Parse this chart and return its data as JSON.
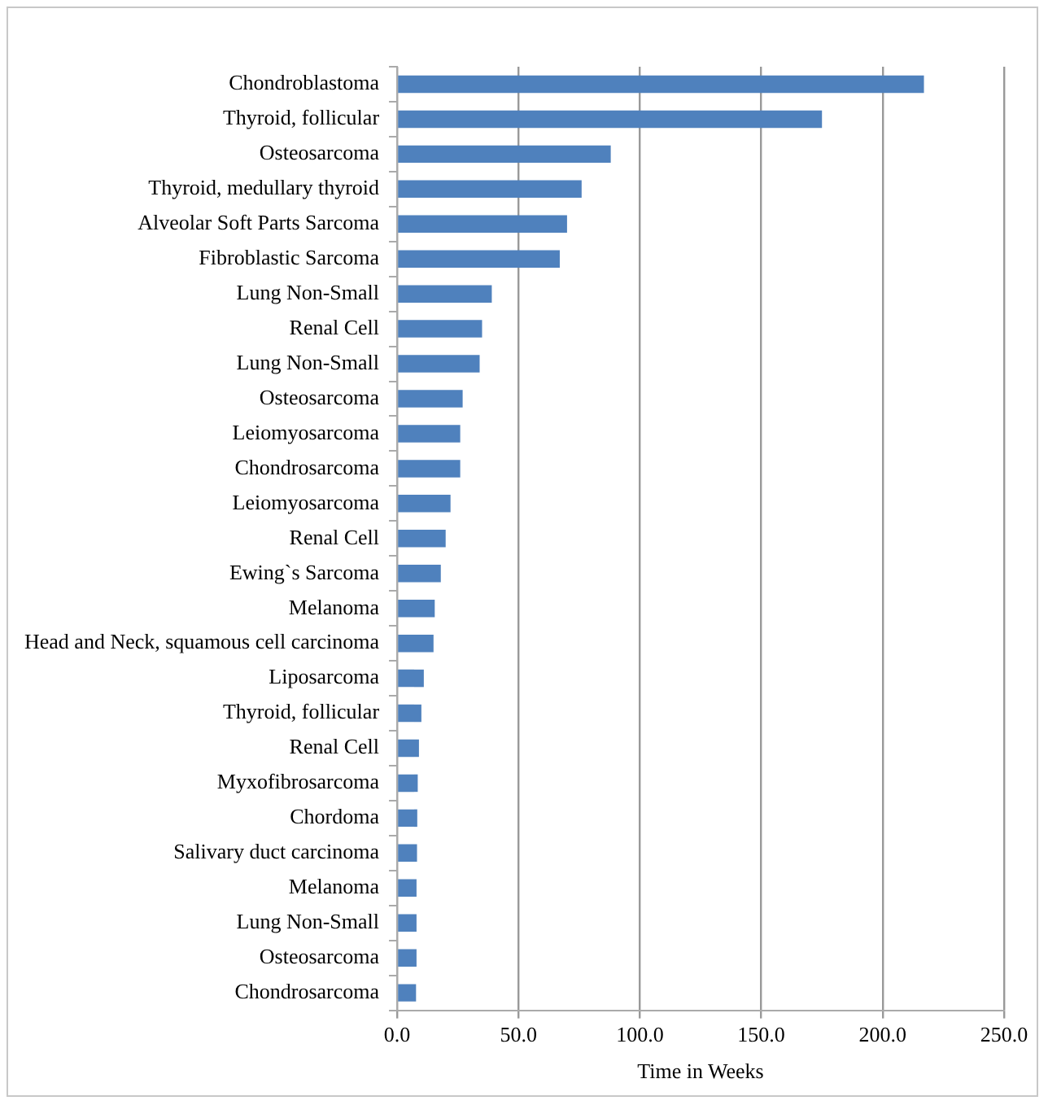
{
  "chart_data": {
    "type": "bar",
    "orientation": "horizontal",
    "xlabel": "Time in Weeks",
    "categories": [
      "Chondroblastoma",
      "Thyroid, follicular",
      "Osteosarcoma",
      "Thyroid, medullary thyroid",
      "Alveolar Soft Parts Sarcoma",
      "Fibroblastic Sarcoma",
      "Lung Non-Small",
      "Renal Cell",
      "Lung Non-Small",
      "Osteosarcoma",
      "Leiomyosarcoma",
      "Chondrosarcoma",
      "Leiomyosarcoma",
      "Renal Cell",
      "Ewing`s Sarcoma",
      "Melanoma",
      "Head and Neck, squamous cell carcinoma",
      "Liposarcoma",
      "Thyroid, follicular",
      "Renal Cell",
      "Myxofibrosarcoma",
      "Chordoma",
      "Salivary duct carcinoma",
      "Melanoma",
      "Lung Non-Small",
      "Osteosarcoma",
      "Chondrosarcoma"
    ],
    "values": [
      217,
      175,
      88,
      76,
      70,
      67,
      39,
      35,
      34,
      27,
      26,
      26,
      22,
      20,
      18,
      15.5,
      15,
      11,
      10,
      9,
      8.5,
      8.3,
      8.2,
      8,
      8,
      8,
      7.8
    ],
    "color": "#4f81bd",
    "xlim": [
      0,
      250
    ],
    "xticks": [
      {
        "value": 0,
        "label": "0.0"
      },
      {
        "value": 50,
        "label": "50.0"
      },
      {
        "value": 100,
        "label": "100.0"
      },
      {
        "value": 150,
        "label": "150.0"
      },
      {
        "value": 200,
        "label": "200.0"
      },
      {
        "value": 250,
        "label": "250.0"
      }
    ],
    "grid": "x",
    "legend": false
  }
}
